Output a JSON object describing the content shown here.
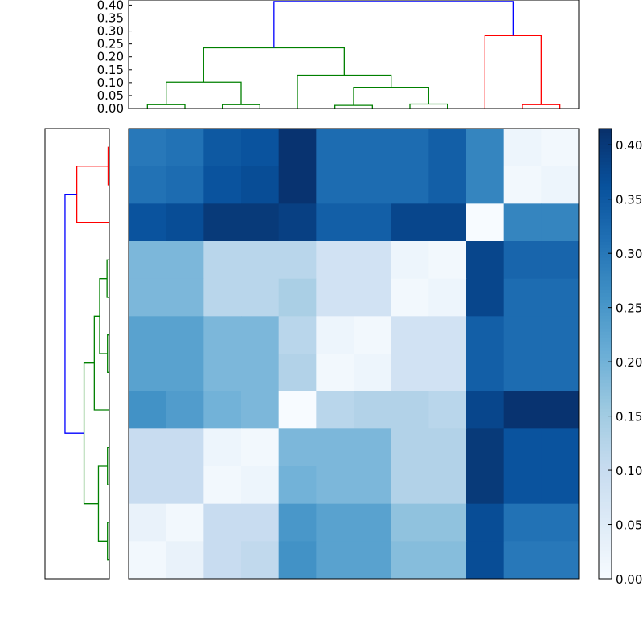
{
  "chart_data": [
    {
      "type": "heatmap",
      "title": "",
      "xlabel": "",
      "ylabel": "",
      "n_rows": 12,
      "n_cols": 12,
      "colormap": "Blues",
      "vmin": 0.0,
      "vmax": 0.415,
      "grid": false,
      "values": [
        [
          0.3,
          0.31,
          0.35,
          0.36,
          0.41,
          0.32,
          0.32,
          0.32,
          0.34,
          0.28,
          0.02,
          0.01
        ],
        [
          0.31,
          0.32,
          0.36,
          0.37,
          0.41,
          0.32,
          0.32,
          0.32,
          0.34,
          0.28,
          0.01,
          0.02
        ],
        [
          0.36,
          0.37,
          0.4,
          0.4,
          0.39,
          0.34,
          0.34,
          0.38,
          0.38,
          0.0,
          0.28,
          0.28
        ],
        [
          0.19,
          0.19,
          0.12,
          0.12,
          0.12,
          0.08,
          0.08,
          0.02,
          0.01,
          0.38,
          0.33,
          0.33
        ],
        [
          0.19,
          0.19,
          0.12,
          0.12,
          0.14,
          0.08,
          0.08,
          0.01,
          0.02,
          0.38,
          0.32,
          0.32
        ],
        [
          0.23,
          0.23,
          0.19,
          0.19,
          0.12,
          0.02,
          0.01,
          0.08,
          0.08,
          0.34,
          0.32,
          0.32
        ],
        [
          0.23,
          0.23,
          0.19,
          0.19,
          0.13,
          0.01,
          0.02,
          0.08,
          0.08,
          0.34,
          0.32,
          0.32
        ],
        [
          0.26,
          0.24,
          0.2,
          0.19,
          0.0,
          0.12,
          0.13,
          0.13,
          0.12,
          0.38,
          0.41,
          0.41
        ],
        [
          0.1,
          0.1,
          0.02,
          0.01,
          0.19,
          0.19,
          0.19,
          0.13,
          0.13,
          0.4,
          0.36,
          0.36
        ],
        [
          0.1,
          0.1,
          0.01,
          0.02,
          0.2,
          0.19,
          0.19,
          0.13,
          0.13,
          0.4,
          0.36,
          0.36
        ],
        [
          0.03,
          0.01,
          0.1,
          0.1,
          0.25,
          0.23,
          0.23,
          0.17,
          0.17,
          0.37,
          0.31,
          0.31
        ],
        [
          0.01,
          0.03,
          0.1,
          0.11,
          0.26,
          0.23,
          0.23,
          0.18,
          0.18,
          0.37,
          0.3,
          0.3
        ]
      ]
    },
    {
      "type": "dendrogram",
      "orientation": "top",
      "ylim": [
        0.0,
        0.42
      ],
      "y_ticks": [
        "0.00",
        "0.05",
        "0.10",
        "0.15",
        "0.20",
        "0.25",
        "0.30",
        "0.35",
        "0.40"
      ],
      "leaf_count": 12,
      "links": [
        {
          "left": 0.5,
          "right": 1.5,
          "height": 0.015,
          "color": "#008000"
        },
        {
          "left": 2.5,
          "right": 3.5,
          "height": 0.015,
          "color": "#008000"
        },
        {
          "left": 1.0,
          "right": 3.0,
          "height": 0.102,
          "color": "#008000"
        },
        {
          "left": 5.5,
          "right": 6.5,
          "height": 0.012,
          "color": "#008000"
        },
        {
          "left": 7.5,
          "right": 8.5,
          "height": 0.017,
          "color": "#008000"
        },
        {
          "left": 6.0,
          "right": 8.0,
          "height": 0.082,
          "color": "#008000"
        },
        {
          "left": 4.5,
          "right": 7.0,
          "height": 0.129,
          "color": "#008000"
        },
        {
          "left": 2.0,
          "right": 5.75,
          "height": 0.235,
          "color": "#008000"
        },
        {
          "left": 10.5,
          "right": 11.5,
          "height": 0.015,
          "color": "#ff0000"
        },
        {
          "left": 9.5,
          "right": 11.0,
          "height": 0.282,
          "color": "#ff0000"
        },
        {
          "left": 3.875,
          "right": 10.25,
          "height": 0.414,
          "color": "#0000ff"
        }
      ]
    },
    {
      "type": "dendrogram",
      "orientation": "left",
      "ylim": [
        0.0,
        0.42
      ],
      "leaf_count": 12,
      "links": [
        {
          "top": 0.5,
          "bottom": 1.5,
          "height": 0.008,
          "color": "#ff0000"
        },
        {
          "top": 1.0,
          "bottom": 2.5,
          "height": 0.212,
          "color": "#ff0000"
        },
        {
          "top": 3.5,
          "bottom": 4.5,
          "height": 0.015,
          "color": "#008000"
        },
        {
          "top": 5.5,
          "bottom": 6.5,
          "height": 0.012,
          "color": "#008000"
        },
        {
          "top": 4.0,
          "bottom": 6.0,
          "height": 0.063,
          "color": "#008000"
        },
        {
          "top": 5.0,
          "bottom": 7.5,
          "height": 0.098,
          "color": "#008000"
        },
        {
          "top": 8.5,
          "bottom": 9.5,
          "height": 0.012,
          "color": "#008000"
        },
        {
          "top": 10.5,
          "bottom": 11.5,
          "height": 0.012,
          "color": "#008000"
        },
        {
          "top": 9.0,
          "bottom": 11.0,
          "height": 0.071,
          "color": "#008000"
        },
        {
          "top": 6.25,
          "bottom": 10.0,
          "height": 0.165,
          "color": "#008000"
        },
        {
          "top": 1.75,
          "bottom": 8.125,
          "height": 0.289,
          "color": "#0000ff"
        }
      ]
    },
    {
      "type": "colorbar",
      "colormap": "Blues",
      "range": [
        0.0,
        0.415
      ],
      "ticks": [
        "0.00",
        "0.05",
        "0.10",
        "0.15",
        "0.20",
        "0.25",
        "0.30",
        "0.35",
        "0.40"
      ]
    }
  ]
}
